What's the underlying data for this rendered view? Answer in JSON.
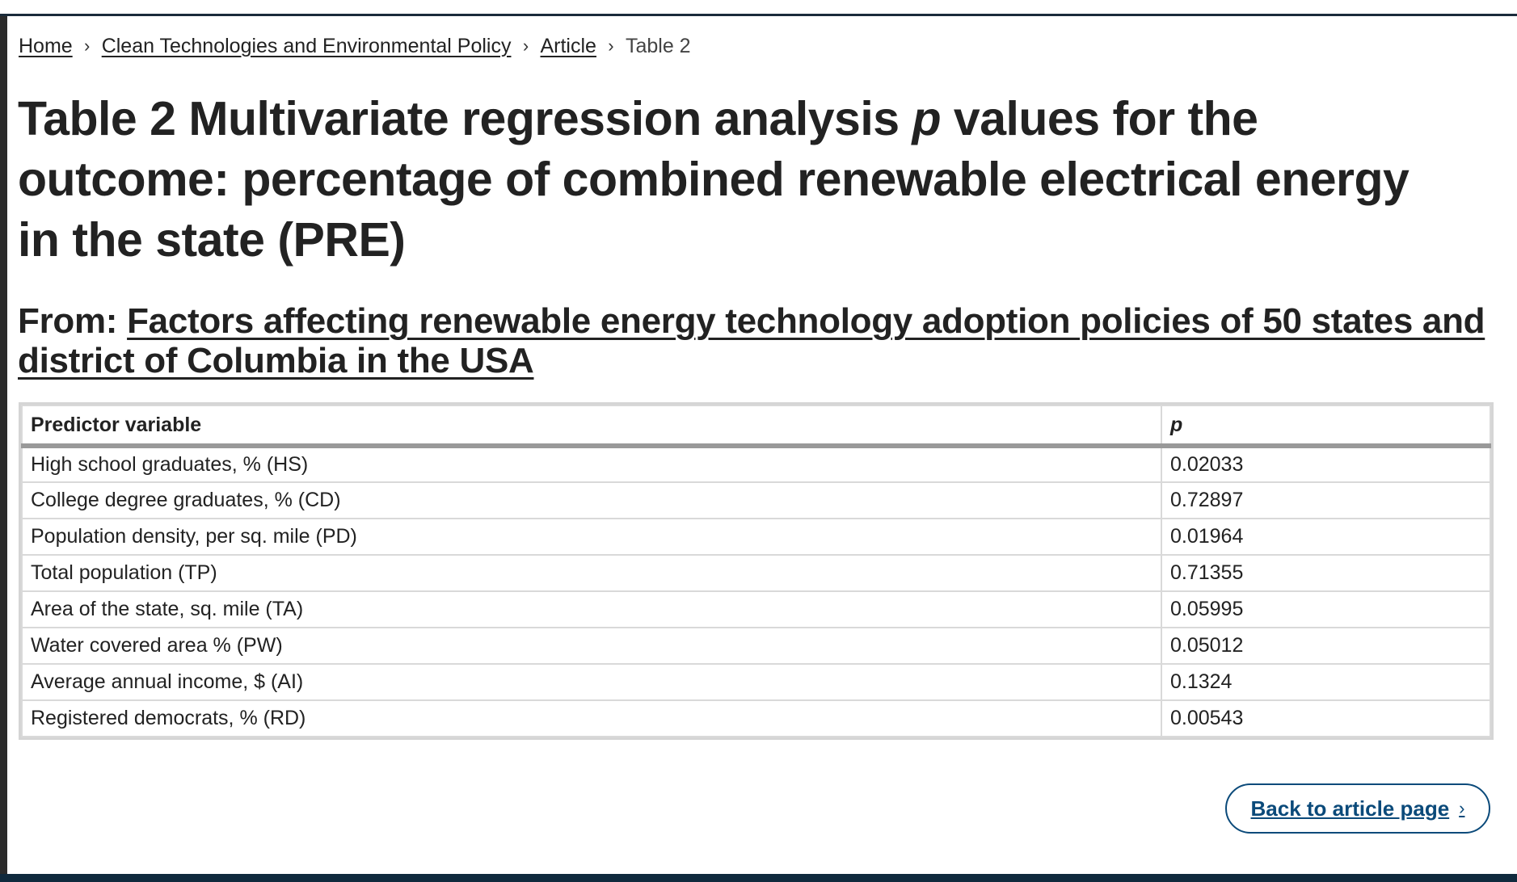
{
  "breadcrumb": {
    "home": "Home",
    "journal": "Clean Technologies and Environmental Policy",
    "article": "Article",
    "current": "Table 2",
    "separator": "›"
  },
  "title": {
    "prefix": "Table 2 Multivariate regression analysis ",
    "italic": "p",
    "suffix": " values for the outcome: percentage of combined renewable electrical energy in the state (PRE)"
  },
  "from": {
    "label": "From: ",
    "article_title": "Factors affecting renewable energy technology adoption policies of 50 states and district of Columbia in the USA"
  },
  "table": {
    "headers": [
      "Predictor variable",
      "p"
    ],
    "rows": [
      [
        "High school graduates, % (HS)",
        "0.02033"
      ],
      [
        "College degree graduates, % (CD)",
        "0.72897"
      ],
      [
        "Population density, per sq. mile (PD)",
        "0.01964"
      ],
      [
        "Total population (TP)",
        "0.71355"
      ],
      [
        "Area of the state, sq. mile (TA)",
        "0.05995"
      ],
      [
        "Water covered area % (PW)",
        "0.05012"
      ],
      [
        "Average annual income, $ (AI)",
        "0.1324"
      ],
      [
        "Registered democrats, % (RD)",
        "0.00543"
      ]
    ]
  },
  "back_button": {
    "label": "Back to article page",
    "icon": "chevron-right-icon",
    "glyph": "›"
  },
  "colors": {
    "link_accent": "#0b4a7a",
    "footer": "#102a3d",
    "text": "#222222"
  }
}
